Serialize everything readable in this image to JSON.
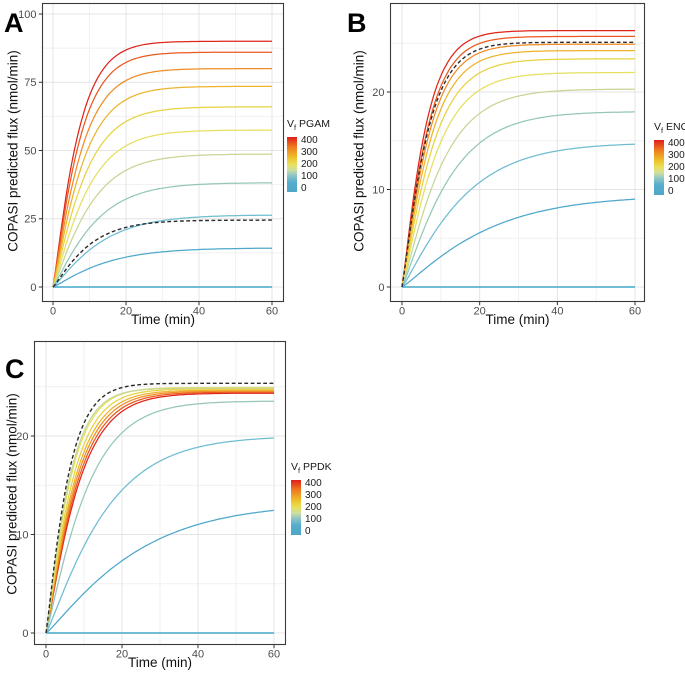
{
  "figure": {
    "background": "#ffffff"
  },
  "chart_data": [
    {
      "type": "line",
      "panel_label": "A",
      "xlabel": "Time (min)",
      "ylabel": "COPASI predicted flux (nmol/min)",
      "x_range": [
        0,
        60
      ],
      "ylim": [
        0,
        100
      ],
      "x_ticks": [
        0,
        20,
        40,
        60
      ],
      "x_minor": [
        10,
        30,
        50
      ],
      "y_ticks": [
        0,
        25,
        50,
        75,
        100
      ],
      "y_minor": [
        12.5,
        37.5,
        62.5,
        87.5
      ],
      "grid": "on",
      "legend_position": "right",
      "curve_model": "flux(t) = plateau * (1 - exp(-(t/tau)^1.15))",
      "legend": {
        "title_main": "V",
        "title_sub": "f",
        "title_rest": "PGAM",
        "ticks": [
          "400",
          "300",
          "200",
          "100",
          "0"
        ],
        "gradient": [
          {
            "c": "#df1d1b",
            "p": 0
          },
          {
            "c": "#ee7a1e",
            "p": 18
          },
          {
            "c": "#eec32b",
            "p": 38
          },
          {
            "c": "#e9e05c",
            "p": 50
          },
          {
            "c": "#cddfa0",
            "p": 60
          },
          {
            "c": "#8ec6c6",
            "p": 70
          },
          {
            "c": "#55adcd",
            "p": 82
          },
          {
            "c": "#4fa6c8",
            "p": 100
          }
        ]
      },
      "series": [
        {
          "vf": 400,
          "color": "#e02419",
          "plateau": 90.0,
          "tau": 7.0
        },
        {
          "vf": 360,
          "color": "#e9591f",
          "plateau": 86.0,
          "tau": 7.4
        },
        {
          "vf": 320,
          "color": "#ef8c25",
          "plateau": 80.0,
          "tau": 7.9
        },
        {
          "vf": 280,
          "color": "#edb32b",
          "plateau": 73.5,
          "tau": 8.4
        },
        {
          "vf": 240,
          "color": "#e8d23f",
          "plateau": 66.0,
          "tau": 9.0
        },
        {
          "vf": 200,
          "color": "#e5e05e",
          "plateau": 57.5,
          "tau": 9.7
        },
        {
          "vf": 160,
          "color": "#c6d695",
          "plateau": 48.7,
          "tau": 10.5
        },
        {
          "vf": 120,
          "color": "#94c7b8",
          "plateau": 38.2,
          "tau": 11.7
        },
        {
          "vf": 80,
          "color": "#6fbcd2",
          "plateau": 26.4,
          "tau": 13.3
        },
        {
          "vf": 40,
          "color": "#4ea7ca",
          "plateau": 14.3,
          "tau": 14.5
        },
        {
          "vf": 0,
          "color": "#5db3d1",
          "plateau": 0.0,
          "tau": 10.0
        }
      ],
      "reference": {
        "style": "dashed",
        "color": "#2b2b2b",
        "plateau": 24.5,
        "tau": 10.0
      }
    },
    {
      "type": "line",
      "panel_label": "B",
      "xlabel": "Time (min)",
      "ylabel": "COPASI predicted flux (nmol/min)",
      "x_range": [
        0,
        60
      ],
      "ylim": [
        0,
        28
      ],
      "x_ticks": [
        0,
        20,
        40,
        60
      ],
      "x_minor": [
        10,
        30,
        50
      ],
      "y_ticks": [
        0,
        10,
        20
      ],
      "y_minor": [
        5,
        15,
        25
      ],
      "grid": "on",
      "legend_position": "right",
      "curve_model": "flux(t) = plateau * (1 - exp(-(t/tau)^1.15))",
      "legend": {
        "title_main": "V",
        "title_sub": "f",
        "title_rest": "ENO",
        "ticks": [
          "400",
          "300",
          "200",
          "100",
          "0"
        ],
        "gradient": [
          {
            "c": "#df1d1b",
            "p": 0
          },
          {
            "c": "#ee7a1e",
            "p": 18
          },
          {
            "c": "#eec32b",
            "p": 38
          },
          {
            "c": "#e9e05c",
            "p": 50
          },
          {
            "c": "#cddfa0",
            "p": 60
          },
          {
            "c": "#8ec6c6",
            "p": 70
          },
          {
            "c": "#55adcd",
            "p": 82
          },
          {
            "c": "#4fa6c8",
            "p": 100
          }
        ]
      },
      "series": [
        {
          "vf": 400,
          "color": "#e02419",
          "plateau": 26.3,
          "tau": 6.2
        },
        {
          "vf": 360,
          "color": "#e9591f",
          "plateau": 25.7,
          "tau": 6.6
        },
        {
          "vf": 320,
          "color": "#ef8c25",
          "plateau": 24.9,
          "tau": 7.0
        },
        {
          "vf": 280,
          "color": "#edb32b",
          "plateau": 24.25,
          "tau": 7.5
        },
        {
          "vf": 240,
          "color": "#e8d23f",
          "plateau": 23.4,
          "tau": 8.2
        },
        {
          "vf": 200,
          "color": "#e5e05e",
          "plateau": 22.0,
          "tau": 9.0
        },
        {
          "vf": 160,
          "color": "#c6d695",
          "plateau": 20.3,
          "tau": 10.5
        },
        {
          "vf": 120,
          "color": "#94c7b8",
          "plateau": 18.0,
          "tau": 12.5
        },
        {
          "vf": 80,
          "color": "#6fbcd2",
          "plateau": 14.8,
          "tau": 16.0
        },
        {
          "vf": 40,
          "color": "#4ea7ca",
          "plateau": 9.4,
          "tau": 22.0
        },
        {
          "vf": 0,
          "color": "#5db3d1",
          "plateau": 0.0,
          "tau": 10.0
        }
      ],
      "reference": {
        "style": "dashed",
        "color": "#2b2b2b",
        "plateau": 25.1,
        "tau": 6.6
      }
    },
    {
      "type": "line",
      "panel_label": "C",
      "xlabel": "Time (min)",
      "ylabel": "COPASI predicted flux (nmol/min)",
      "x_range": [
        0,
        60
      ],
      "ylim": [
        0,
        28
      ],
      "x_ticks": [
        0,
        20,
        40,
        60
      ],
      "x_minor": [
        10,
        30,
        50
      ],
      "y_ticks": [
        0,
        10,
        20
      ],
      "y_minor": [
        5,
        15,
        25
      ],
      "grid": "on",
      "legend_position": "right",
      "curve_model": "flux(t) = plateau * (1 - exp(-(t/tau)^1.15))",
      "legend": {
        "title_main": "V",
        "title_sub": "f",
        "title_rest": "PPDK",
        "ticks": [
          "400",
          "300",
          "200",
          "100",
          "0"
        ],
        "gradient": [
          {
            "c": "#df1d1b",
            "p": 0
          },
          {
            "c": "#ee7a1e",
            "p": 18
          },
          {
            "c": "#eec32b",
            "p": 38
          },
          {
            "c": "#e9e05c",
            "p": 50
          },
          {
            "c": "#cddfa0",
            "p": 60
          },
          {
            "c": "#8ec6c6",
            "p": 70
          },
          {
            "c": "#55adcd",
            "p": 82
          },
          {
            "c": "#4fa6c8",
            "p": 100
          }
        ]
      },
      "series": [
        {
          "vf": 400,
          "color": "#e02419",
          "plateau": 24.35,
          "tau": 8.8
        },
        {
          "vf": 360,
          "color": "#e9591f",
          "plateau": 24.45,
          "tau": 8.4
        },
        {
          "vf": 320,
          "color": "#ef8c25",
          "plateau": 24.55,
          "tau": 8.0
        },
        {
          "vf": 280,
          "color": "#edb32b",
          "plateau": 24.65,
          "tau": 7.6
        },
        {
          "vf": 240,
          "color": "#e8d23f",
          "plateau": 24.78,
          "tau": 7.1
        },
        {
          "vf": 200,
          "color": "#e5e05e",
          "plateau": 24.92,
          "tau": 6.5
        },
        {
          "vf": 160,
          "color": "#c6d695",
          "plateau": 24.85,
          "tau": 6.2
        },
        {
          "vf": 120,
          "color": "#94c7b8",
          "plateau": 23.55,
          "tau": 11.0
        },
        {
          "vf": 80,
          "color": "#6fbcd2",
          "plateau": 20.0,
          "tau": 16.0
        },
        {
          "vf": 40,
          "color": "#4ea7ca",
          "plateau": 13.2,
          "tau": 24.0
        },
        {
          "vf": 0,
          "color": "#5db3d1",
          "plateau": 0.0,
          "tau": 10.0
        }
      ],
      "reference": {
        "style": "dashed",
        "color": "#2b2b2b",
        "plateau": 25.35,
        "tau": 5.9
      }
    }
  ]
}
